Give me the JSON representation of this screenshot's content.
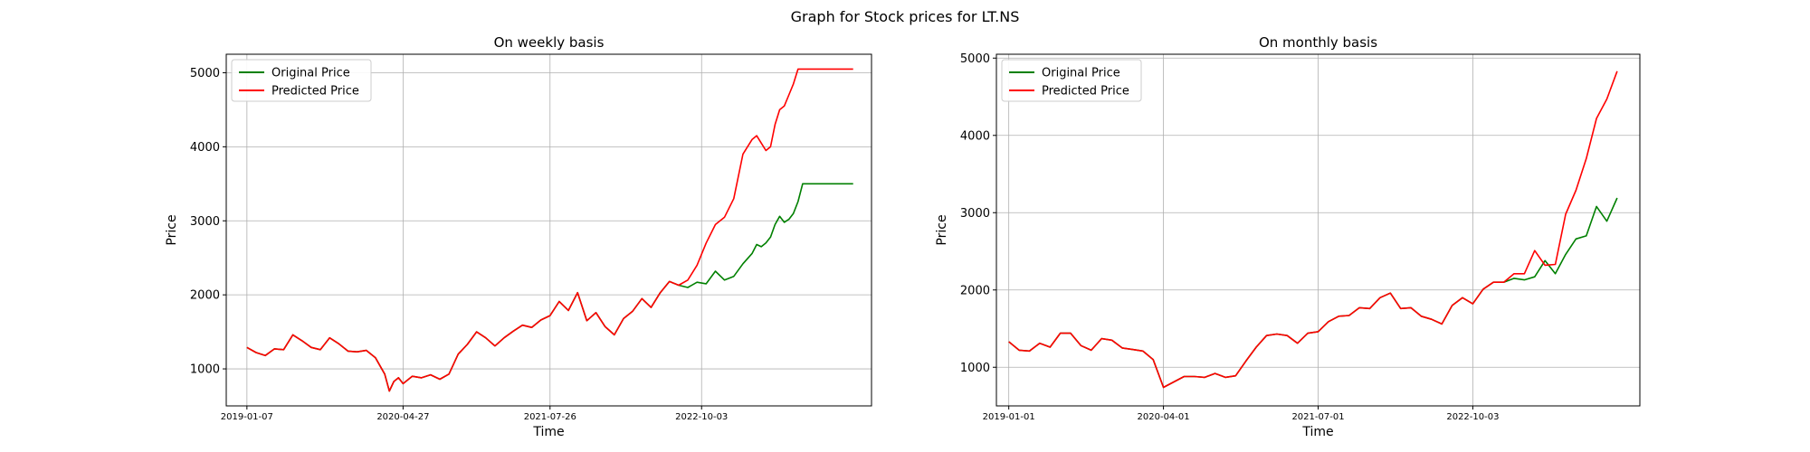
{
  "figure": {
    "suptitle": "Graph for Stock prices for LT.NS"
  },
  "chart_data": [
    {
      "type": "line",
      "title": "On weekly basis",
      "xlabel": "Time",
      "ylabel": "Price",
      "x_tick_labels": [
        "2019-01-07",
        "2020-04-27",
        "2021-07-26",
        "2022-10-03"
      ],
      "x_ticks": [
        0,
        68,
        132,
        198
      ],
      "ylim": [
        500,
        5250
      ],
      "yticks": [
        1000,
        2000,
        3000,
        4000,
        5000
      ],
      "grid": true,
      "legend": "top-left",
      "colors": {
        "original": "#008000",
        "predicted": "#ff0000"
      },
      "series": [
        {
          "name": "Original Price",
          "color": "#008000",
          "x": [
            0,
            4,
            8,
            12,
            16,
            20,
            24,
            28,
            32,
            36,
            40,
            44,
            48,
            52,
            56,
            60,
            62,
            64,
            66,
            68,
            72,
            76,
            80,
            84,
            88,
            92,
            96,
            100,
            104,
            108,
            112,
            116,
            120,
            124,
            128,
            132,
            136,
            140,
            144,
            148,
            152,
            156,
            160,
            164,
            168,
            172,
            176,
            180,
            184,
            188,
            192,
            196,
            200,
            204,
            208,
            212,
            216,
            220,
            222,
            224,
            226,
            228,
            230,
            232,
            234,
            236,
            238,
            240,
            242,
            244,
            246,
            248,
            250,
            252,
            254,
            256,
            258,
            260,
            262,
            264
          ],
          "y": [
            1290,
            1220,
            1180,
            1270,
            1260,
            1460,
            1380,
            1290,
            1260,
            1420,
            1340,
            1240,
            1230,
            1250,
            1150,
            930,
            700,
            830,
            880,
            800,
            900,
            880,
            920,
            860,
            930,
            1200,
            1330,
            1500,
            1420,
            1310,
            1420,
            1510,
            1590,
            1560,
            1660,
            1720,
            1910,
            1790,
            2030,
            1650,
            1760,
            1570,
            1460,
            1680,
            1780,
            1950,
            1830,
            2030,
            2180,
            2130,
            2100,
            2170,
            2150,
            2320,
            2200,
            2250,
            2420,
            2560,
            2680,
            2650,
            2700,
            2780,
            2950,
            3060,
            2980,
            3020,
            3100,
            3260,
            3500,
            3500,
            3500,
            3500,
            3500,
            3500,
            3500,
            3500,
            3500,
            3500,
            3500,
            3500
          ]
        },
        {
          "name": "Predicted Price",
          "color": "#ff0000",
          "x": [
            0,
            4,
            8,
            12,
            16,
            20,
            24,
            28,
            32,
            36,
            40,
            44,
            48,
            52,
            56,
            60,
            62,
            64,
            66,
            68,
            72,
            76,
            80,
            84,
            88,
            92,
            96,
            100,
            104,
            108,
            112,
            116,
            120,
            124,
            128,
            132,
            136,
            140,
            144,
            148,
            152,
            156,
            160,
            164,
            168,
            172,
            176,
            180,
            184,
            188,
            192,
            196,
            200,
            204,
            208,
            212,
            216,
            220,
            222,
            224,
            226,
            228,
            230,
            232,
            234,
            236,
            238,
            240,
            242,
            244,
            246,
            248,
            250,
            252,
            254,
            256,
            258,
            260,
            262,
            264
          ],
          "y": [
            1290,
            1220,
            1180,
            1270,
            1260,
            1460,
            1380,
            1290,
            1260,
            1420,
            1340,
            1240,
            1230,
            1250,
            1150,
            930,
            700,
            830,
            880,
            800,
            900,
            880,
            920,
            860,
            930,
            1200,
            1330,
            1500,
            1420,
            1310,
            1420,
            1510,
            1590,
            1560,
            1660,
            1720,
            1910,
            1790,
            2030,
            1650,
            1760,
            1570,
            1460,
            1680,
            1780,
            1950,
            1830,
            2030,
            2180,
            2130,
            2200,
            2400,
            2700,
            2950,
            3050,
            3300,
            3900,
            4100,
            4150,
            4050,
            3950,
            4000,
            4300,
            4500,
            4550,
            4700,
            4850,
            5050,
            5050,
            5050,
            5050,
            5050,
            5050,
            5050,
            5050,
            5050,
            5050,
            5050,
            5050,
            5050
          ]
        }
      ]
    },
    {
      "type": "line",
      "title": "On monthly basis",
      "xlabel": "Time",
      "ylabel": "Price",
      "x_tick_labels": [
        "2019-01-01",
        "2020-04-01",
        "2021-07-01",
        "2022-10-03"
      ],
      "x_ticks": [
        0,
        15,
        30,
        45
      ],
      "ylim": [
        500,
        5050
      ],
      "yticks": [
        1000,
        2000,
        3000,
        4000,
        5000
      ],
      "grid": true,
      "legend": "top-left",
      "colors": {
        "original": "#008000",
        "predicted": "#ff0000"
      },
      "series": [
        {
          "name": "Original Price",
          "color": "#008000",
          "x": [
            0,
            1,
            2,
            3,
            4,
            5,
            6,
            7,
            8,
            9,
            10,
            11,
            12,
            13,
            14,
            15,
            16,
            17,
            18,
            19,
            20,
            21,
            22,
            23,
            24,
            25,
            26,
            27,
            28,
            29,
            30,
            31,
            32,
            33,
            34,
            35,
            36,
            37,
            38,
            39,
            40,
            41,
            42,
            43,
            44,
            45,
            46,
            47,
            48,
            49,
            50,
            51,
            52,
            53,
            54,
            55,
            56,
            57,
            58,
            59
          ],
          "y": [
            1330,
            1220,
            1210,
            1310,
            1260,
            1440,
            1440,
            1280,
            1220,
            1370,
            1350,
            1250,
            1230,
            1210,
            1100,
            740,
            810,
            880,
            880,
            870,
            920,
            870,
            890,
            1080,
            1260,
            1410,
            1430,
            1410,
            1310,
            1440,
            1460,
            1590,
            1660,
            1670,
            1770,
            1760,
            1900,
            1960,
            1760,
            1770,
            1660,
            1620,
            1560,
            1800,
            1900,
            1820,
            2010,
            2100,
            2100,
            2150,
            2130,
            2170,
            2380,
            2210,
            2460,
            2660,
            2700,
            3080,
            2890,
            3190
          ]
        },
        {
          "name": "Predicted Price",
          "color": "#ff0000",
          "x": [
            0,
            1,
            2,
            3,
            4,
            5,
            6,
            7,
            8,
            9,
            10,
            11,
            12,
            13,
            14,
            15,
            16,
            17,
            18,
            19,
            20,
            21,
            22,
            23,
            24,
            25,
            26,
            27,
            28,
            29,
            30,
            31,
            32,
            33,
            34,
            35,
            36,
            37,
            38,
            39,
            40,
            41,
            42,
            43,
            44,
            45,
            46,
            47,
            48,
            49,
            50,
            51,
            52,
            53,
            54,
            55,
            56,
            57,
            58,
            59
          ],
          "y": [
            1330,
            1220,
            1210,
            1310,
            1260,
            1440,
            1440,
            1280,
            1220,
            1370,
            1350,
            1250,
            1230,
            1210,
            1100,
            740,
            810,
            880,
            880,
            870,
            920,
            870,
            890,
            1080,
            1260,
            1410,
            1430,
            1410,
            1310,
            1440,
            1460,
            1590,
            1660,
            1670,
            1770,
            1760,
            1900,
            1960,
            1760,
            1770,
            1660,
            1620,
            1560,
            1800,
            1900,
            1820,
            2010,
            2100,
            2100,
            2210,
            2210,
            2510,
            2320,
            2330,
            2980,
            3290,
            3700,
            4220,
            4470,
            4830
          ]
        }
      ]
    }
  ]
}
